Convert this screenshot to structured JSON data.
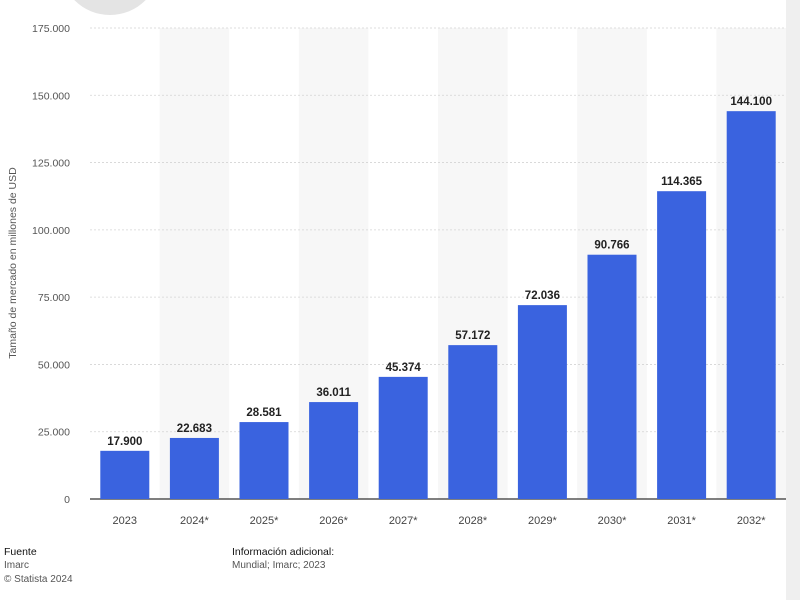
{
  "chart_data": {
    "type": "bar",
    "categories": [
      "2023",
      "2024*",
      "2025*",
      "2026*",
      "2027*",
      "2028*",
      "2029*",
      "2030*",
      "2031*",
      "2032*"
    ],
    "values": [
      17900,
      22683,
      28581,
      36011,
      45374,
      57172,
      72036,
      90766,
      114365,
      144100
    ],
    "value_labels": [
      "17.900",
      "22.683",
      "28.581",
      "36.011",
      "45.374",
      "57.172",
      "72.036",
      "90.766",
      "114.365",
      "144.100"
    ],
    "ylabel": "Tamaño de mercado en millones de USD",
    "xlabel": "",
    "ylim": [
      0,
      175000
    ],
    "yticks": [
      0,
      25000,
      50000,
      75000,
      100000,
      125000,
      150000,
      175000
    ],
    "ytick_labels": [
      "0",
      "25.000",
      "50.000",
      "75.000",
      "100.000",
      "125.000",
      "150.000",
      "175.000"
    ],
    "grid": true,
    "bar_color": "#3a63df"
  },
  "footer": {
    "source_title": "Fuente",
    "source_value": "Imarc",
    "copyright": "© Statista 2024",
    "info_title": "Información adicional:",
    "info_value": "Mundial; Imarc; 2023"
  }
}
